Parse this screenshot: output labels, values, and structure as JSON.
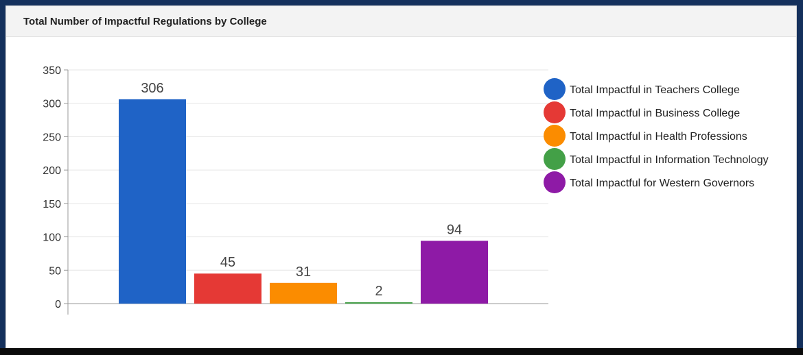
{
  "panel": {
    "title": "Total Number of Impactful Regulations by College"
  },
  "chart_data": {
    "type": "bar",
    "title": "",
    "xlabel": "",
    "ylabel": "",
    "ylim": [
      0,
      350
    ],
    "yticks": [
      0,
      50,
      100,
      150,
      200,
      250,
      300,
      350
    ],
    "grid": true,
    "legend": "right",
    "show_data_labels": true,
    "series": [
      {
        "name": "Total Impactful in Teachers College",
        "value": 306,
        "color": "#1f63c6"
      },
      {
        "name": "Total Impactful in Business College",
        "value": 45,
        "color": "#e53935"
      },
      {
        "name": "Total Impactful in Health Professions",
        "value": 31,
        "color": "#fb8c00"
      },
      {
        "name": "Total Impactful in Information Technology",
        "value": 2,
        "color": "#43a047"
      },
      {
        "name": "Total Impactful for Western Governors",
        "value": 94,
        "color": "#8e1aa6"
      }
    ]
  }
}
